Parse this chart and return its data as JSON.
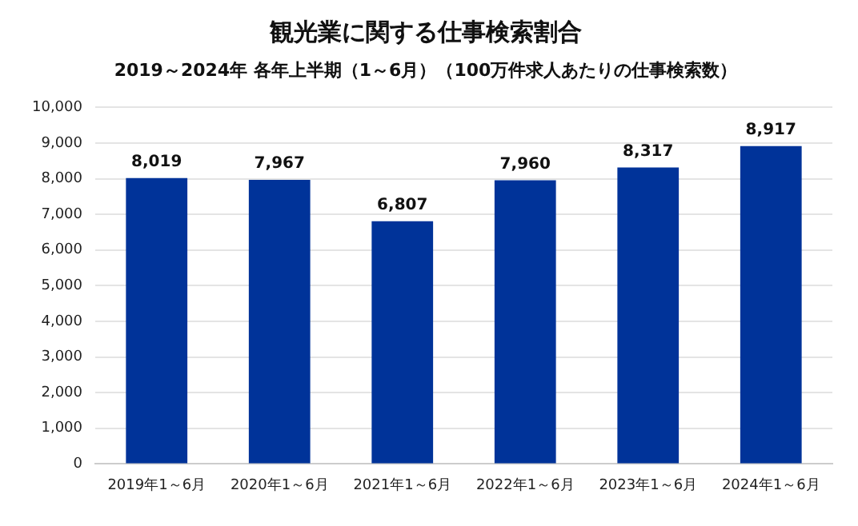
{
  "chart_data": {
    "type": "bar",
    "title": "観光業に関する仕事検索割合",
    "subtitle": "2019～2024年 各年上半期（1～6月）（100万件求人あたりの仕事検索数）",
    "categories": [
      "2019年1～6月",
      "2020年1～6月",
      "2021年1～6月",
      "2022年1～6月",
      "2023年1～6月",
      "2024年1～6月"
    ],
    "values": [
      8019,
      7967,
      6807,
      7960,
      8317,
      8917
    ],
    "value_labels": [
      "8,019",
      "7,967",
      "6,807",
      "7,960",
      "8,317",
      "8,917"
    ],
    "color": "#003399",
    "ylim": [
      0,
      10000
    ],
    "yticks": [
      0,
      {
        "value": 1000,
        "label": "1,000"
      },
      {
        "value": 2000,
        "label": "2,000"
      },
      {
        "value": 3000,
        "label": "3,000"
      },
      {
        "value": 4000,
        "label": "4,000"
      },
      {
        "value": 5000,
        "label": "5,000"
      },
      {
        "value": 6000,
        "label": "6,000"
      },
      {
        "value": 7000,
        "label": "7,000"
      },
      {
        "value": 8000,
        "label": "8,000"
      },
      {
        "value": 9000,
        "label": "9,000"
      },
      {
        "value": 10000,
        "label": "10,000"
      }
    ],
    "grid": "y",
    "legend": false
  }
}
